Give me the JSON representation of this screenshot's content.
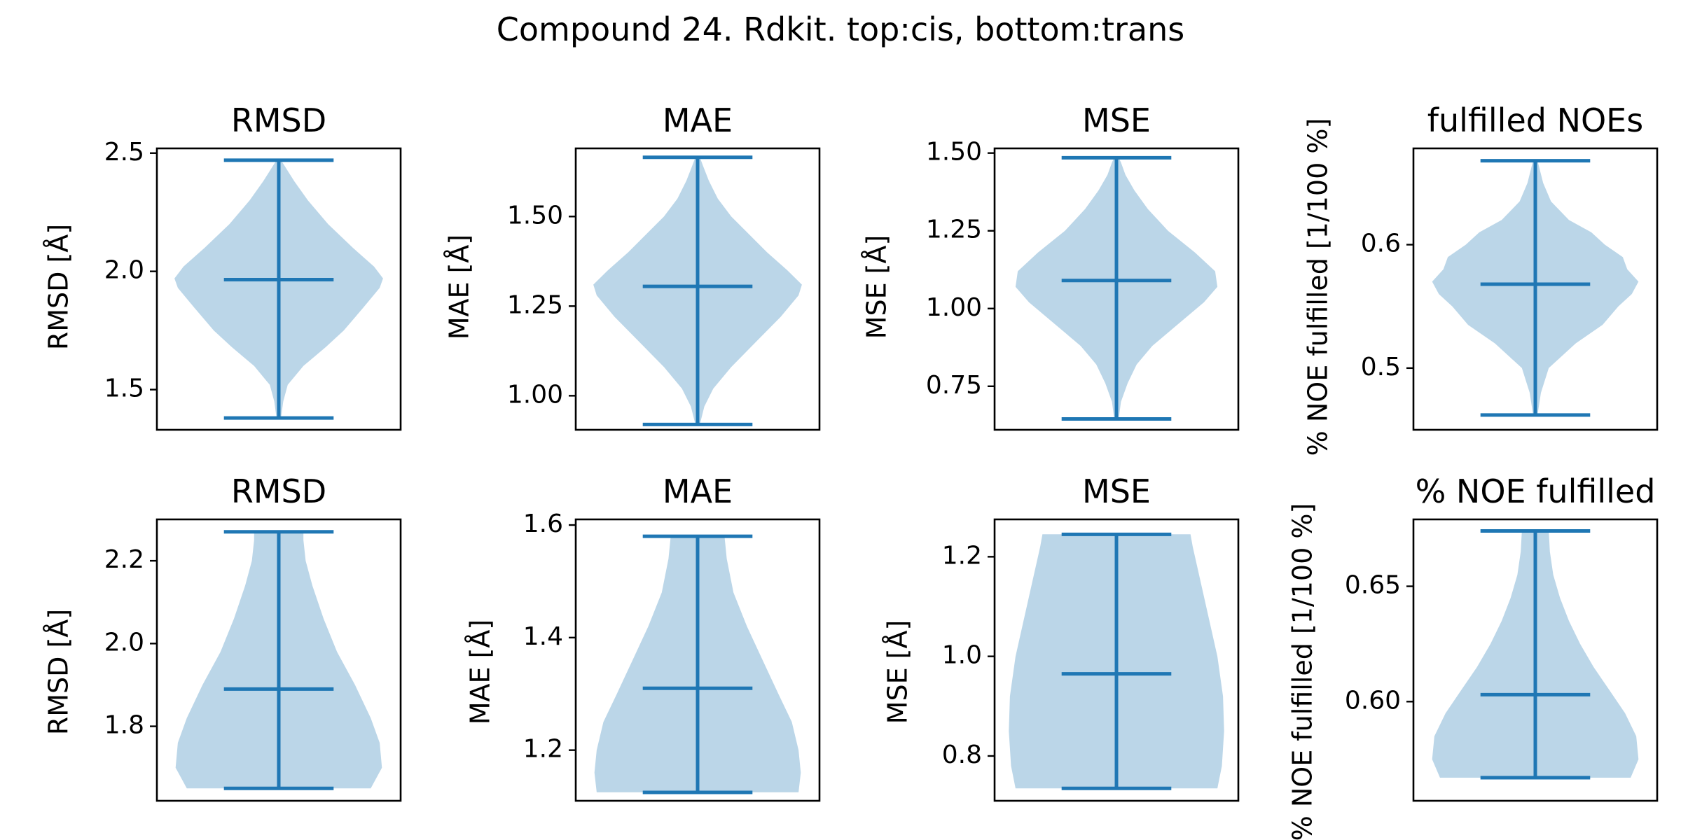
{
  "figure": {
    "title": "Compound 24. Rdkit. top:cis, bottom:trans"
  },
  "chart_data": [
    {
      "type": "violin",
      "row": "top",
      "title": "RMSD",
      "ylabel": "RMSD [$\\AA$]",
      "ylim": [
        1.33,
        2.52
      ],
      "yticks": [
        1.5,
        2.0,
        2.5
      ],
      "ytick_labels": [
        "1.5",
        "2.0",
        "2.5"
      ],
      "min": 1.38,
      "median": 1.965,
      "max": 2.47,
      "density": [
        [
          1.38,
          0.02
        ],
        [
          1.45,
          0.04
        ],
        [
          1.52,
          0.08
        ],
        [
          1.6,
          0.22
        ],
        [
          1.68,
          0.42
        ],
        [
          1.75,
          0.58
        ],
        [
          1.85,
          0.76
        ],
        [
          1.93,
          0.9
        ],
        [
          1.97,
          0.93
        ],
        [
          2.02,
          0.85
        ],
        [
          2.1,
          0.66
        ],
        [
          2.2,
          0.44
        ],
        [
          2.3,
          0.26
        ],
        [
          2.38,
          0.14
        ],
        [
          2.44,
          0.06
        ],
        [
          2.47,
          0.02
        ]
      ]
    },
    {
      "type": "violin",
      "row": "top",
      "title": "MAE",
      "ylabel": "MAE [$\\AA$]",
      "ylim": [
        0.905,
        1.69
      ],
      "yticks": [
        1.0,
        1.25,
        1.5
      ],
      "ytick_labels": [
        "1.00",
        "1.25",
        "1.50"
      ],
      "min": 0.92,
      "median": 1.305,
      "max": 1.665,
      "density": [
        [
          0.92,
          0.02
        ],
        [
          0.97,
          0.06
        ],
        [
          1.02,
          0.14
        ],
        [
          1.08,
          0.3
        ],
        [
          1.15,
          0.52
        ],
        [
          1.22,
          0.74
        ],
        [
          1.28,
          0.9
        ],
        [
          1.31,
          0.93
        ],
        [
          1.35,
          0.8
        ],
        [
          1.4,
          0.62
        ],
        [
          1.45,
          0.46
        ],
        [
          1.5,
          0.3
        ],
        [
          1.55,
          0.18
        ],
        [
          1.6,
          0.1
        ],
        [
          1.64,
          0.05
        ],
        [
          1.665,
          0.02
        ]
      ]
    },
    {
      "type": "violin",
      "row": "top",
      "title": "MSE",
      "ylabel": "MSE [$\\AA$]",
      "ylim": [
        0.61,
        1.515
      ],
      "yticks": [
        0.75,
        1.0,
        1.25,
        1.5
      ],
      "ytick_labels": [
        "0.75",
        "1.00",
        "1.25",
        "1.50"
      ],
      "min": 0.645,
      "median": 1.09,
      "max": 1.485,
      "density": [
        [
          0.645,
          0.02
        ],
        [
          0.7,
          0.04
        ],
        [
          0.76,
          0.1
        ],
        [
          0.82,
          0.18
        ],
        [
          0.88,
          0.32
        ],
        [
          0.95,
          0.55
        ],
        [
          1.02,
          0.78
        ],
        [
          1.07,
          0.9
        ],
        [
          1.12,
          0.88
        ],
        [
          1.18,
          0.7
        ],
        [
          1.25,
          0.46
        ],
        [
          1.32,
          0.28
        ],
        [
          1.38,
          0.16
        ],
        [
          1.43,
          0.08
        ],
        [
          1.47,
          0.04
        ],
        [
          1.485,
          0.02
        ]
      ]
    },
    {
      "type": "violin",
      "row": "top",
      "title": "fulfilled NOEs",
      "ylabel": "% NOE fulfilled [1/100 %]",
      "ylim": [
        0.45,
        0.678
      ],
      "yticks": [
        0.5,
        0.6
      ],
      "ytick_labels": [
        "0.5",
        "0.6"
      ],
      "min": 0.462,
      "median": 0.568,
      "max": 0.668,
      "density": [
        [
          0.462,
          0.02
        ],
        [
          0.48,
          0.05
        ],
        [
          0.5,
          0.12
        ],
        [
          0.52,
          0.36
        ],
        [
          0.535,
          0.6
        ],
        [
          0.55,
          0.74
        ],
        [
          0.56,
          0.86
        ],
        [
          0.57,
          0.92
        ],
        [
          0.58,
          0.82
        ],
        [
          0.59,
          0.78
        ],
        [
          0.6,
          0.62
        ],
        [
          0.61,
          0.5
        ],
        [
          0.62,
          0.3
        ],
        [
          0.635,
          0.14
        ],
        [
          0.65,
          0.07
        ],
        [
          0.668,
          0.02
        ]
      ]
    },
    {
      "type": "violin",
      "row": "bottom",
      "title": "RMSD",
      "ylabel": "RMSD [$\\AA$]",
      "ylim": [
        1.62,
        2.3
      ],
      "yticks": [
        1.8,
        2.0,
        2.2
      ],
      "ytick_labels": [
        "1.8",
        "2.0",
        "2.2"
      ],
      "min": 1.65,
      "median": 1.89,
      "max": 2.27,
      "density": [
        [
          1.65,
          0.82
        ],
        [
          1.7,
          0.92
        ],
        [
          1.76,
          0.9
        ],
        [
          1.82,
          0.82
        ],
        [
          1.9,
          0.68
        ],
        [
          1.98,
          0.52
        ],
        [
          2.06,
          0.4
        ],
        [
          2.14,
          0.3
        ],
        [
          2.2,
          0.24
        ],
        [
          2.25,
          0.22
        ],
        [
          2.27,
          0.22
        ]
      ]
    },
    {
      "type": "violin",
      "row": "bottom",
      "title": "MAE",
      "ylabel": "MAE [$\\AA$]",
      "ylim": [
        1.11,
        1.61
      ],
      "yticks": [
        1.2,
        1.4,
        1.6
      ],
      "ytick_labels": [
        "1.2",
        "1.4",
        "1.6"
      ],
      "min": 1.125,
      "median": 1.31,
      "max": 1.58,
      "density": [
        [
          1.125,
          0.9
        ],
        [
          1.16,
          0.92
        ],
        [
          1.2,
          0.9
        ],
        [
          1.25,
          0.84
        ],
        [
          1.3,
          0.72
        ],
        [
          1.36,
          0.58
        ],
        [
          1.42,
          0.44
        ],
        [
          1.48,
          0.32
        ],
        [
          1.54,
          0.26
        ],
        [
          1.58,
          0.24
        ]
      ]
    },
    {
      "type": "violin",
      "row": "bottom",
      "title": "MSE",
      "ylabel": "MSE [$\\AA$]",
      "ylim": [
        0.71,
        1.275
      ],
      "yticks": [
        0.8,
        1.0,
        1.2
      ],
      "ytick_labels": [
        "0.8",
        "1.0",
        "1.2"
      ],
      "min": 0.735,
      "median": 0.965,
      "max": 1.245,
      "density": [
        [
          0.735,
          0.9
        ],
        [
          0.78,
          0.94
        ],
        [
          0.85,
          0.96
        ],
        [
          0.92,
          0.95
        ],
        [
          1.0,
          0.9
        ],
        [
          1.08,
          0.82
        ],
        [
          1.16,
          0.74
        ],
        [
          1.22,
          0.68
        ],
        [
          1.245,
          0.66
        ]
      ]
    },
    {
      "type": "violin",
      "row": "bottom",
      "title": "% NOE fulfilled",
      "ylabel": "% NOE fulfilled [1/100 %]",
      "ylim": [
        0.557,
        0.679
      ],
      "yticks": [
        0.6,
        0.65
      ],
      "ytick_labels": [
        "0.60",
        "0.65"
      ],
      "min": 0.567,
      "median": 0.603,
      "max": 0.674,
      "density": [
        [
          0.567,
          0.85
        ],
        [
          0.575,
          0.92
        ],
        [
          0.585,
          0.9
        ],
        [
          0.595,
          0.8
        ],
        [
          0.605,
          0.66
        ],
        [
          0.615,
          0.52
        ],
        [
          0.625,
          0.4
        ],
        [
          0.635,
          0.3
        ],
        [
          0.645,
          0.22
        ],
        [
          0.655,
          0.16
        ],
        [
          0.665,
          0.13
        ],
        [
          0.674,
          0.12
        ]
      ]
    }
  ]
}
